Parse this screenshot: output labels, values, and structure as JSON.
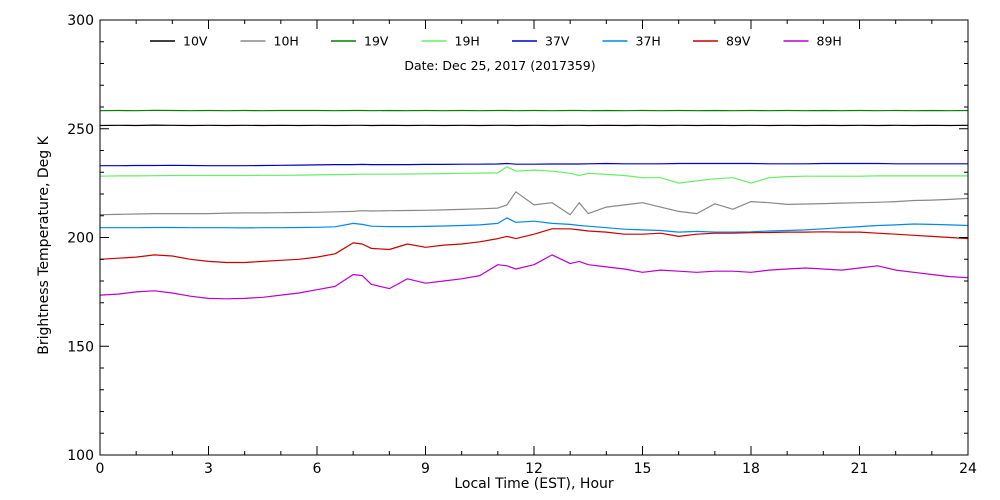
{
  "chart_data": {
    "type": "line",
    "title": "",
    "annotation": "Date: Dec 25, 2017 (2017359)",
    "xlabel": "Local Time (EST), Hour",
    "ylabel": "Brightness Temperature, Deg K",
    "xlim": [
      0,
      24
    ],
    "ylim": [
      100,
      300
    ],
    "xticks": [
      "0",
      "3",
      "6",
      "9",
      "12",
      "15",
      "18",
      "21",
      "24"
    ],
    "yticks": [
      "100",
      "150",
      "200",
      "250",
      "300"
    ],
    "grid": false,
    "legend_position": "top",
    "x": [
      0,
      0.5,
      1,
      1.5,
      2,
      2.5,
      3,
      3.5,
      4,
      4.5,
      5,
      5.5,
      6,
      6.5,
      7,
      7.25,
      7.5,
      8,
      8.5,
      9,
      9.5,
      10,
      10.5,
      11,
      11.25,
      11.5,
      12,
      12.5,
      13,
      13.25,
      13.5,
      14,
      14.5,
      15,
      15.5,
      16,
      16.5,
      17,
      17.5,
      18,
      18.5,
      19,
      19.5,
      20,
      20.5,
      21,
      21.5,
      22,
      22.5,
      23,
      23.5,
      24
    ],
    "series": [
      {
        "name": "10V",
        "color": "#000000",
        "values": [
          251.5,
          251.6,
          251.5,
          251.7,
          251.6,
          251.5,
          251.6,
          251.5,
          251.6,
          251.5,
          251.6,
          251.5,
          251.6,
          251.5,
          251.6,
          251.6,
          251.5,
          251.6,
          251.5,
          251.6,
          251.5,
          251.6,
          251.5,
          251.6,
          251.6,
          251.5,
          251.6,
          251.5,
          251.6,
          251.6,
          251.5,
          251.6,
          251.5,
          251.6,
          251.5,
          251.6,
          251.5,
          251.6,
          251.5,
          251.6,
          251.5,
          251.6,
          251.5,
          251.6,
          251.5,
          251.6,
          251.5,
          251.6,
          251.5,
          251.6,
          251.5,
          251.6
        ]
      },
      {
        "name": "10H",
        "color": "#888888",
        "values": [
          210.5,
          210.6,
          210.8,
          211,
          211,
          211,
          211,
          211.2,
          211.3,
          211.3,
          211.4,
          211.5,
          211.6,
          211.8,
          212,
          212.3,
          212.2,
          212.3,
          212.4,
          212.5,
          212.7,
          212.9,
          213.2,
          213.5,
          215,
          221,
          215,
          216,
          210.5,
          216,
          211,
          214,
          215,
          216,
          214,
          212,
          211,
          215.5,
          213,
          216.5,
          216,
          215.2,
          215.4,
          215.6,
          215.8,
          216,
          216.2,
          216.5,
          217,
          217.2,
          217.5,
          218
        ]
      },
      {
        "name": "19V",
        "color": "#008000",
        "values": [
          258.3,
          258.4,
          258.3,
          258.5,
          258.4,
          258.3,
          258.4,
          258.3,
          258.4,
          258.3,
          258.4,
          258.4,
          258.4,
          258.3,
          258.4,
          258.4,
          258.3,
          258.4,
          258.3,
          258.4,
          258.3,
          258.4,
          258.3,
          258.4,
          258.4,
          258.3,
          258.4,
          258.3,
          258.4,
          258.4,
          258.3,
          258.4,
          258.3,
          258.4,
          258.3,
          258.4,
          258.3,
          258.4,
          258.3,
          258.4,
          258.3,
          258.4,
          258.3,
          258.4,
          258.3,
          258.4,
          258.3,
          258.4,
          258.3,
          258.4,
          258.3,
          258.4
        ]
      },
      {
        "name": "19H",
        "color": "#66ee66",
        "values": [
          228.2,
          228.3,
          228.3,
          228.4,
          228.5,
          228.5,
          228.5,
          228.5,
          228.5,
          228.6,
          228.6,
          228.7,
          228.8,
          228.9,
          229,
          229.1,
          229.1,
          229.1,
          229.2,
          229.3,
          229.4,
          229.5,
          229.6,
          229.7,
          232.5,
          230.5,
          231,
          230.5,
          229.5,
          228.5,
          229.5,
          229,
          228.5,
          227.5,
          227.5,
          225,
          226,
          227,
          227.5,
          225,
          227.5,
          228,
          228.2,
          228.2,
          228.2,
          228.2,
          228.3,
          228.3,
          228.3,
          228.3,
          228.3,
          228.3
        ]
      },
      {
        "name": "37V",
        "color": "#0000cc",
        "values": [
          233,
          233,
          233.1,
          233.1,
          233.2,
          233.1,
          233,
          233,
          233,
          233.1,
          233.2,
          233.3,
          233.4,
          233.5,
          233.5,
          233.6,
          233.5,
          233.5,
          233.5,
          233.6,
          233.6,
          233.7,
          233.7,
          233.8,
          234,
          233.7,
          233.7,
          233.8,
          233.8,
          233.8,
          233.9,
          234,
          233.9,
          233.9,
          233.9,
          234,
          234,
          234,
          234,
          234,
          233.9,
          233.9,
          233.9,
          234,
          234,
          234,
          234,
          233.9,
          233.9,
          233.9,
          233.9,
          233.9
        ]
      },
      {
        "name": "37H",
        "color": "#0088ee",
        "values": [
          204.5,
          204.5,
          204.5,
          204.6,
          204.6,
          204.5,
          204.5,
          204.5,
          204.4,
          204.5,
          204.5,
          204.6,
          204.7,
          204.9,
          206.5,
          206,
          205.2,
          205,
          205,
          205.1,
          205.3,
          205.5,
          205.8,
          206.5,
          209,
          207,
          207.5,
          206.5,
          206,
          205.5,
          205.2,
          204.5,
          203.8,
          203.5,
          203.2,
          202.5,
          202.8,
          202.5,
          202.5,
          202.6,
          203,
          203.2,
          203.5,
          204,
          204.5,
          205,
          205.5,
          205.8,
          206.2,
          206,
          205.8,
          205.5
        ]
      },
      {
        "name": "89V",
        "color": "#cc0000",
        "values": [
          190,
          190.5,
          191,
          192,
          191.5,
          190,
          189,
          188.5,
          188.5,
          189,
          189.5,
          190,
          191,
          192.5,
          197.5,
          197,
          195,
          194.5,
          197,
          195.5,
          196.5,
          197,
          198,
          199.5,
          200.5,
          199.5,
          201.5,
          204,
          204,
          203.5,
          203,
          202.5,
          201.5,
          201.5,
          202,
          200.5,
          201.5,
          202,
          202,
          202.2,
          202.3,
          202.5,
          202.5,
          202.6,
          202.5,
          202.5,
          202,
          201.5,
          201,
          200.5,
          200,
          199.5
        ]
      },
      {
        "name": "89H",
        "color": "#bb00cc",
        "values": [
          173.5,
          174,
          175,
          175.5,
          174.5,
          173,
          172,
          171.8,
          172,
          172.5,
          173.5,
          174.5,
          176,
          177.5,
          183,
          182.5,
          178.5,
          176.5,
          181,
          179,
          180,
          181,
          182.5,
          187.5,
          187,
          185.5,
          187.5,
          192,
          188,
          189,
          187.5,
          186.5,
          185.5,
          184,
          185,
          184.5,
          184,
          184.5,
          184.5,
          184,
          185,
          185.5,
          186,
          185.5,
          185,
          186,
          187,
          185,
          184,
          183,
          182,
          181.5
        ]
      }
    ]
  }
}
